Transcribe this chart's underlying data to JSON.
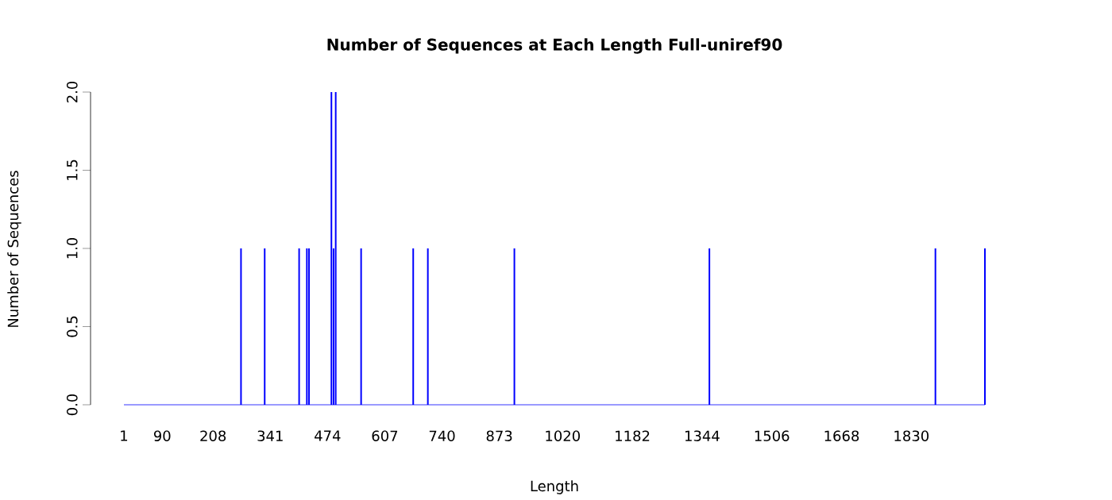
{
  "chart_data": {
    "type": "bar",
    "title": "Number of Sequences at Each Length  Full-uniref90",
    "xlabel": "Length",
    "ylabel": "Number of Sequences",
    "x": [
      273,
      328,
      408,
      426,
      431,
      483,
      488,
      493,
      552,
      673,
      707,
      908,
      1361,
      1886,
      2001
    ],
    "values": [
      1,
      1,
      1,
      1,
      1,
      2,
      1,
      2,
      1,
      1,
      1,
      1,
      1,
      1,
      1
    ],
    "color": "#0000ff",
    "xlim": [
      1,
      2001
    ],
    "ylim": [
      0,
      2
    ],
    "xticks": [
      1,
      90,
      208,
      341,
      474,
      607,
      740,
      873,
      1020,
      1182,
      1344,
      1506,
      1668,
      1830
    ],
    "yticks": [
      {
        "value": 0,
        "label": "0.0"
      },
      0.5,
      {
        "value": 1,
        "label": "1.0"
      },
      1.5,
      {
        "value": 2,
        "label": "2.0"
      }
    ]
  }
}
